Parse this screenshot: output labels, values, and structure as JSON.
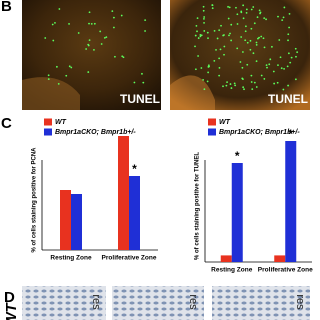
{
  "panels": {
    "b": "B",
    "c": "C",
    "d": "D"
  },
  "images": {
    "b_labels": [
      "TUNEL",
      "TUNEL"
    ],
    "d_labels": [
      "res",
      "res",
      "res"
    ],
    "d_row_label": "WT"
  },
  "chart_data": [
    {
      "type": "bar",
      "ylabel": "% of cells staining positive for PCNA",
      "categories": [
        "Resting Zone",
        "Proliferative Zone"
      ],
      "series": [
        {
          "name": "WT",
          "color": "#e8321f",
          "values": [
            30,
            57
          ],
          "significance": [
            null,
            null
          ]
        },
        {
          "name": "Bmpr1aCKO; Bmpr1b+/-",
          "color": "#1f2fd6",
          "values": [
            28,
            37
          ],
          "significance": [
            null,
            "*"
          ]
        }
      ],
      "ylim": [
        0,
        60
      ]
    },
    {
      "type": "bar",
      "ylabel": "% of cells staining positive for TUNEL",
      "categories": [
        "Resting Zone",
        "Proliferative Zone"
      ],
      "series": [
        {
          "name": "WT",
          "color": "#e8321f",
          "values": [
            3,
            3
          ],
          "significance": [
            null,
            null
          ]
        },
        {
          "name": "Bmpr1aCKO; Bmpr1b+/-",
          "color": "#1f2fd6",
          "values": [
            45,
            55
          ],
          "significance": [
            "*",
            "*"
          ]
        }
      ],
      "ylim": [
        0,
        60
      ]
    }
  ]
}
